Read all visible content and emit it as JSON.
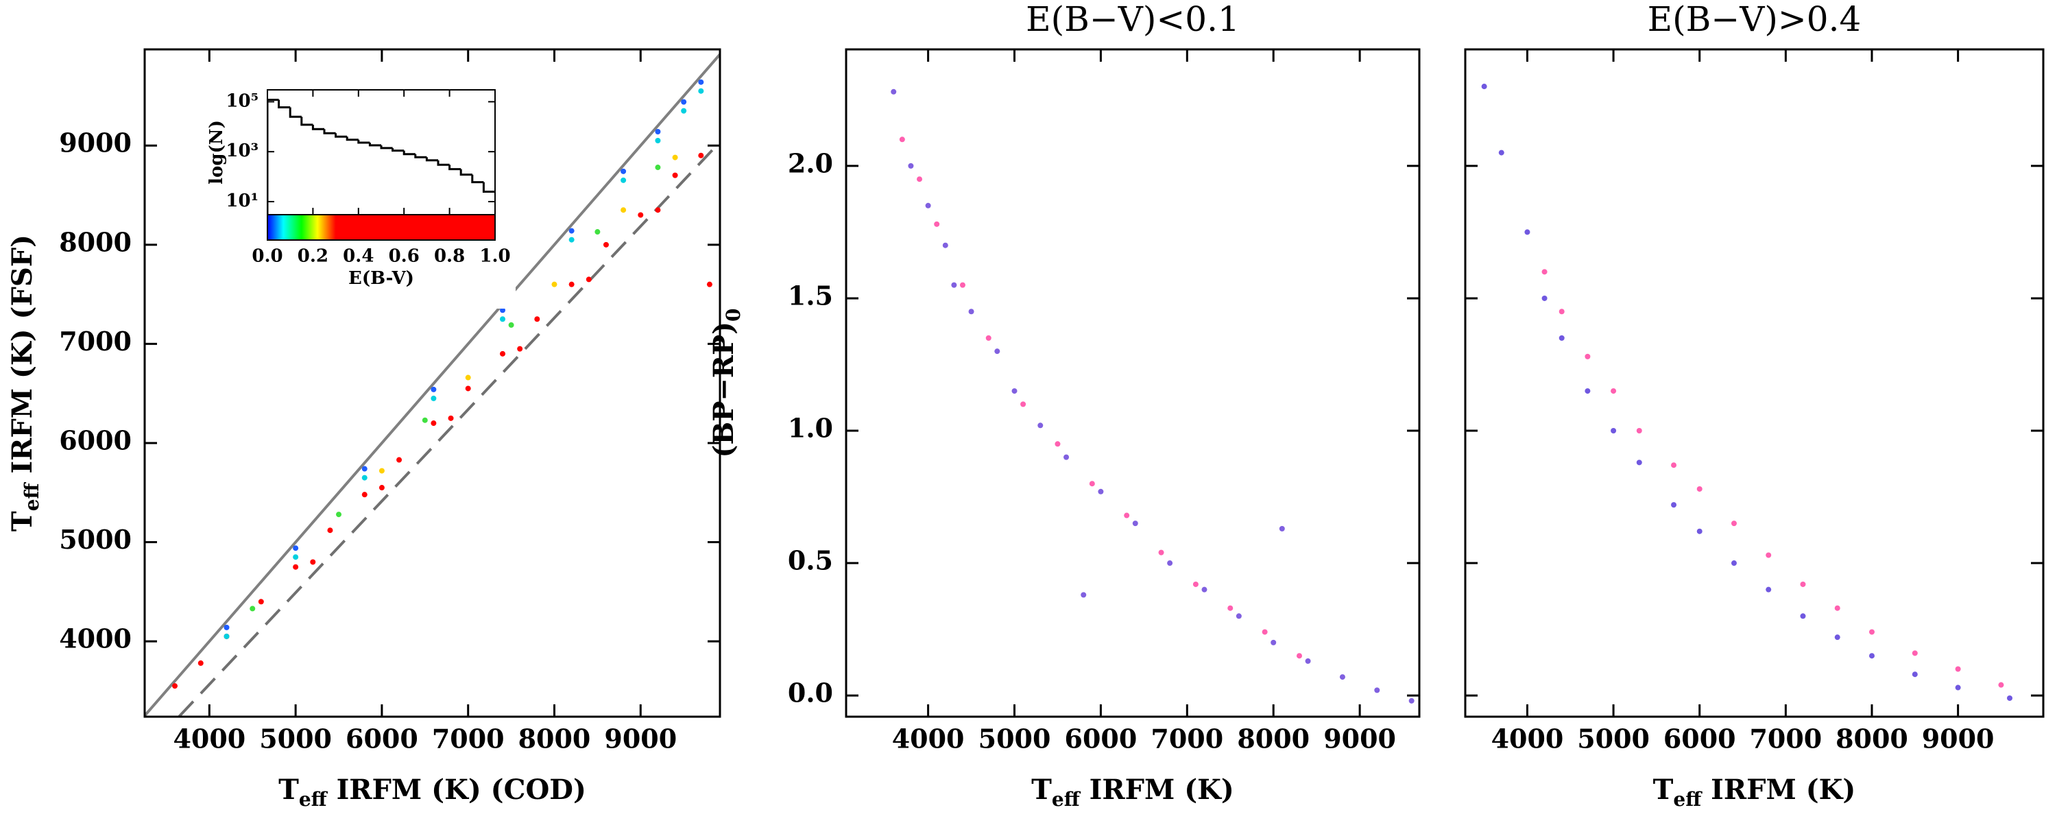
{
  "chart_data": [
    {
      "type": "scatter",
      "xlabel": {
        "symbol": "T",
        "sub": "eff",
        "text": " IRFM (K) (COD)"
      },
      "ylabel": {
        "symbol": "T",
        "sub": "eff",
        "text": " IRFM (K) (FSF)"
      },
      "xlim": [
        3250,
        9920
      ],
      "ylim": [
        3240,
        9970
      ],
      "xticks": [
        4000,
        5000,
        6000,
        7000,
        8000,
        9000
      ],
      "yticks": [
        4000,
        5000,
        6000,
        7000,
        8000,
        9000
      ],
      "lines": [
        {
          "color": "#808080",
          "style": "solid",
          "x": [
            3250,
            9920
          ],
          "y": [
            3250,
            9920
          ]
        },
        {
          "color": "#707070",
          "style": "dashed",
          "x": [
            3650,
            9920
          ],
          "y": [
            3243,
            9036
          ]
        }
      ],
      "series": [
        {
          "color": "#ff0000",
          "x": [
            3600,
            3900,
            4200,
            4600,
            5000,
            5400,
            5800,
            6200,
            6600,
            7000,
            7400,
            7800,
            8200,
            8600,
            9000,
            9400,
            9700,
            5200,
            6000,
            6800,
            7600,
            8400,
            9200,
            9800
          ],
          "values": [
            3550,
            3780,
            4050,
            4400,
            4750,
            5120,
            5480,
            5830,
            6200,
            6550,
            6900,
            7250,
            7600,
            8000,
            8300,
            8700,
            8900,
            4800,
            5550,
            6250,
            6950,
            7650,
            8350,
            7600
          ]
        },
        {
          "color": "#ffd000",
          "x": [
            6000,
            7000,
            8000,
            8800,
            9400
          ],
          "values": [
            5720,
            6660,
            7600,
            8350,
            8880
          ]
        },
        {
          "color": "#40e040",
          "x": [
            4500,
            5500,
            6500,
            7500,
            8500,
            9200
          ],
          "values": [
            4330,
            5280,
            6230,
            7190,
            8130,
            8780
          ]
        },
        {
          "color": "#00d0e0",
          "x": [
            4200,
            5000,
            5800,
            6600,
            7400,
            8200,
            8800,
            9200,
            9500,
            9700
          ],
          "values": [
            4050,
            4850,
            5650,
            6450,
            7250,
            8050,
            8650,
            9050,
            9350,
            9550
          ]
        },
        {
          "color": "#1e5cff",
          "x": [
            4200,
            5000,
            5800,
            6600,
            7400,
            8200,
            8800,
            9200,
            9500,
            9700
          ],
          "values": [
            4140,
            4940,
            5740,
            6540,
            7340,
            8140,
            8740,
            9140,
            9440,
            9640
          ]
        }
      ]
    },
    {
      "type": "histogram",
      "xlabel": "E(B-V)",
      "ylabel": "log(N)",
      "log_y": true,
      "xlim": [
        0,
        1
      ],
      "ylim": [
        3,
        300000
      ],
      "xticks": [
        {
          "value": 0,
          "label": "0.0"
        },
        {
          "value": 0.2,
          "label": "0.2"
        },
        {
          "value": 0.4,
          "label": "0.4"
        },
        {
          "value": 0.6,
          "label": "0.6"
        },
        {
          "value": 0.8,
          "label": "0.8"
        },
        {
          "value": 1,
          "label": "1.0"
        }
      ],
      "yticks": [
        {
          "value": 10,
          "label": "10¹"
        },
        {
          "value": 1000,
          "label": "10³"
        },
        {
          "value": 100000,
          "label": "10⁵"
        }
      ],
      "bins": [
        0,
        0.05,
        0.1,
        0.15,
        0.2,
        0.25,
        0.3,
        0.35,
        0.4,
        0.45,
        0.5,
        0.55,
        0.6,
        0.65,
        0.7,
        0.75,
        0.8,
        0.85,
        0.9,
        0.95,
        1
      ],
      "values": [
        120000,
        60000,
        25000,
        12000,
        8000,
        5500,
        4000,
        3000,
        2300,
        1800,
        1400,
        1100,
        800,
        600,
        450,
        300,
        200,
        120,
        60,
        25
      ],
      "color": "#000000",
      "colorbar": [
        {
          "value": 0,
          "color": "#0000ff"
        },
        {
          "value": 0.07,
          "color": "#00ffff"
        },
        {
          "value": 0.15,
          "color": "#00ff00"
        },
        {
          "value": 0.22,
          "color": "#ffff00"
        },
        {
          "value": 0.3,
          "color": "#ff0000"
        },
        {
          "value": 1,
          "color": "#ff0000"
        }
      ]
    },
    {
      "type": "scatter",
      "title": "E(B−V)<0.1",
      "xlabel": {
        "symbol": "T",
        "sub": "eff",
        "text": " IRFM (K)"
      },
      "ylabel": {
        "symbol": "(BP−RP)",
        "sub": "0",
        "text": ""
      },
      "xlim": [
        3050,
        9690
      ],
      "ylim": [
        -0.08,
        2.44
      ],
      "xticks": [
        4000,
        5000,
        6000,
        7000,
        8000,
        9000
      ],
      "yticks": [
        {
          "value": 0,
          "label": "0.0"
        },
        0.5,
        {
          "value": 1,
          "label": "1.0"
        },
        1.5,
        {
          "value": 2,
          "label": "2.0"
        }
      ],
      "series": [
        {
          "color": "#8060e0",
          "x": [
            3600,
            3800,
            4000,
            4200,
            4500,
            4800,
            5000,
            5300,
            5600,
            6000,
            6400,
            6800,
            7200,
            7600,
            8000,
            8400,
            8800,
            9200,
            9600,
            4300,
            5800,
            8100
          ],
          "values": [
            2.28,
            2.0,
            1.85,
            1.7,
            1.45,
            1.3,
            1.15,
            1.02,
            0.9,
            0.77,
            0.65,
            0.5,
            0.4,
            0.3,
            0.2,
            0.13,
            0.07,
            0.02,
            -0.02,
            1.55,
            0.38,
            0.63
          ]
        },
        {
          "color": "#ff60b0",
          "x": [
            3700,
            3900,
            4100,
            4400,
            4700,
            5100,
            5500,
            5900,
            6300,
            6700,
            7100,
            7500,
            7900,
            8300
          ],
          "values": [
            2.1,
            1.95,
            1.78,
            1.55,
            1.35,
            1.1,
            0.95,
            0.8,
            0.68,
            0.54,
            0.42,
            0.33,
            0.24,
            0.15
          ]
        }
      ]
    },
    {
      "type": "scatter",
      "title": "E(B−V)>0.4",
      "xlabel": {
        "symbol": "T",
        "sub": "eff",
        "text": " IRFM (K)"
      },
      "xlim": [
        3280,
        9990
      ],
      "ylim": [
        -0.08,
        2.44
      ],
      "xticks": [
        4000,
        5000,
        6000,
        7000,
        8000,
        9000
      ],
      "yticks": [
        0,
        0.5,
        1,
        1.5,
        2
      ],
      "hide_ytick_labels": true,
      "series": [
        {
          "color": "#7058e0",
          "x": [
            3500,
            3700,
            4000,
            4200,
            4400,
            4700,
            5000,
            5300,
            5700,
            6000,
            6400,
            6800,
            7200,
            7600,
            8000,
            8500,
            9000,
            9600
          ],
          "values": [
            2.3,
            2.05,
            1.75,
            1.5,
            1.35,
            1.15,
            1.0,
            0.88,
            0.72,
            0.62,
            0.5,
            0.4,
            0.3,
            0.22,
            0.15,
            0.08,
            0.03,
            -0.01
          ]
        },
        {
          "color": "#ff60b0",
          "x": [
            4200,
            4400,
            4700,
            5000,
            5300,
            5700,
            6000,
            6400,
            6800,
            7200,
            7600,
            8000,
            8500,
            9000,
            9500
          ],
          "values": [
            1.6,
            1.45,
            1.28,
            1.15,
            1.0,
            0.87,
            0.78,
            0.65,
            0.53,
            0.42,
            0.33,
            0.24,
            0.16,
            0.1,
            0.04
          ]
        }
      ]
    }
  ]
}
